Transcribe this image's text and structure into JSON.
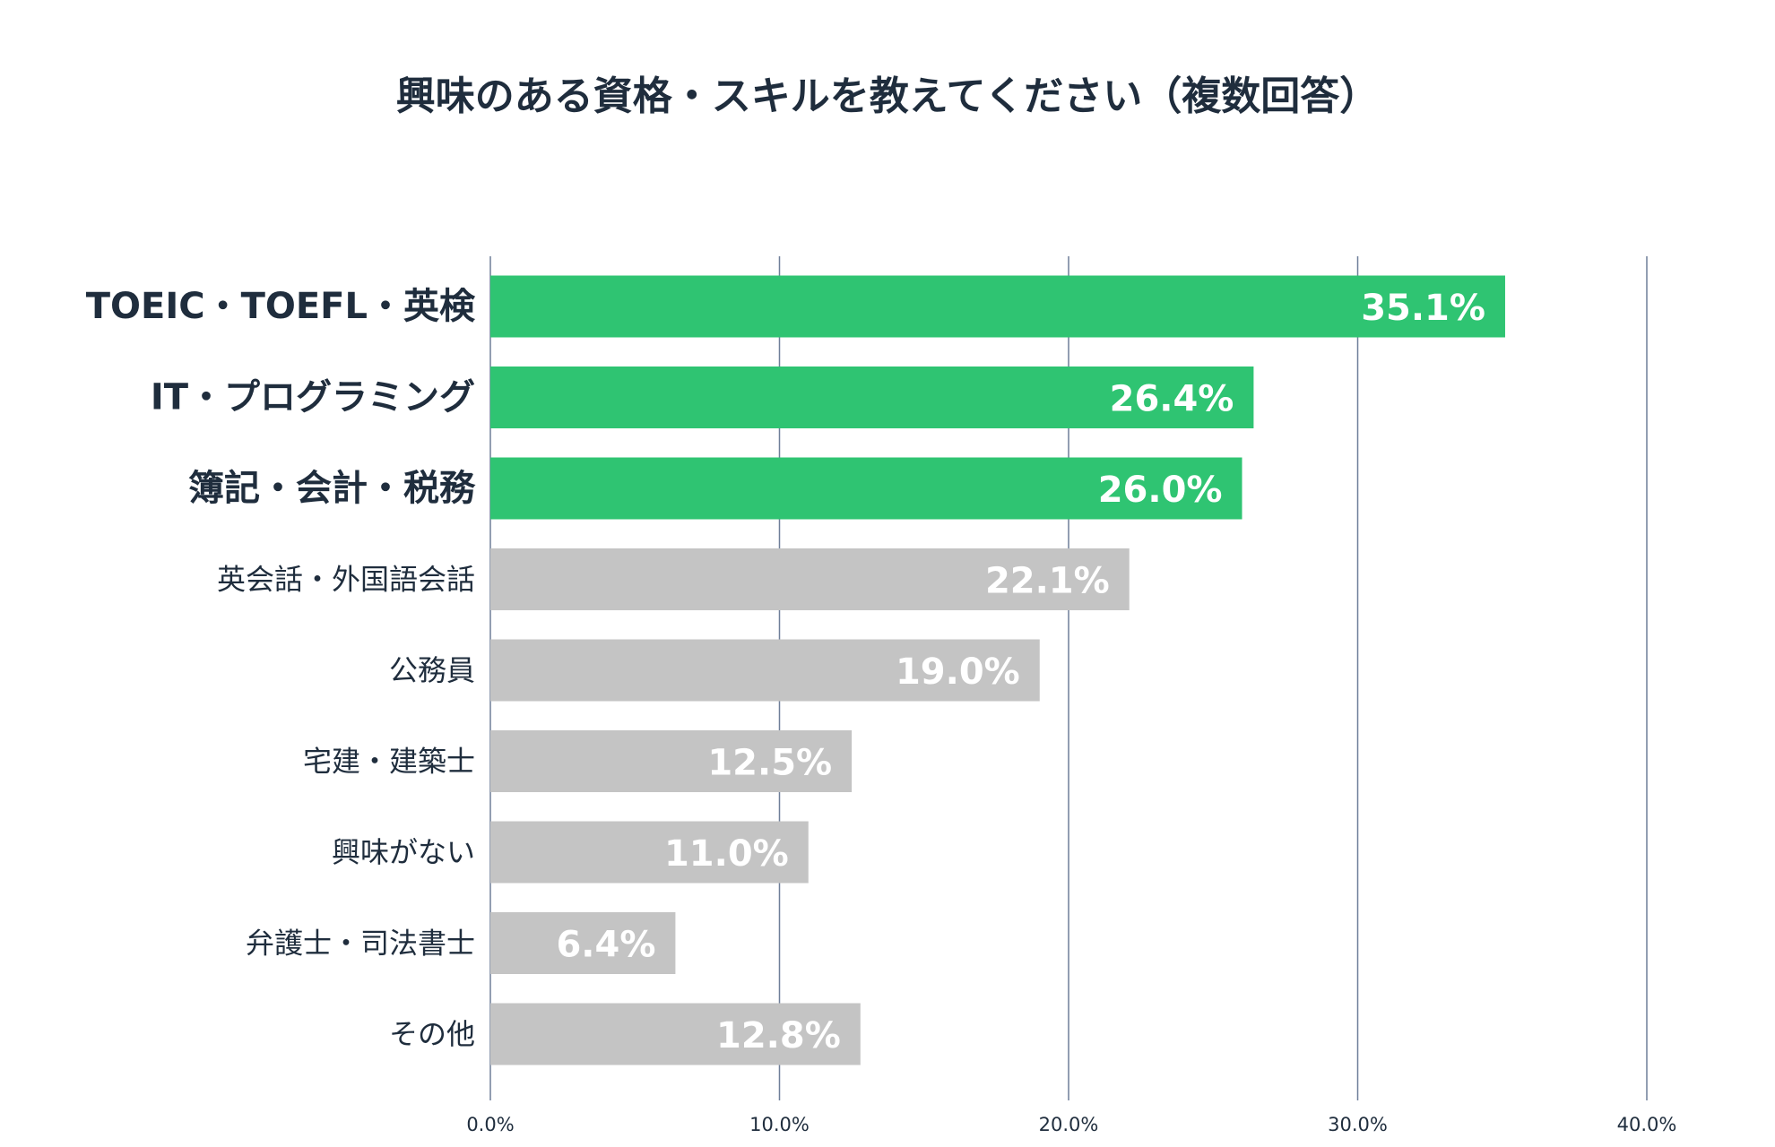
{
  "chart_data": {
    "type": "bar",
    "orientation": "horizontal",
    "title": "興味のある資格・スキルを教えてください（複数回答）",
    "categories": [
      "TOEIC・TOEFL・英検",
      "IT・プログラミング",
      "簿記・会計・税務",
      "英会話・外国語会話",
      "公務員",
      "宅建・建築士",
      "興味がない",
      "弁護士・司法書士",
      "その他"
    ],
    "values": [
      35.1,
      26.4,
      26.0,
      22.1,
      19.0,
      12.5,
      11.0,
      6.4,
      12.8
    ],
    "value_labels": [
      "35.1%",
      "26.4%",
      "26.0%",
      "22.1%",
      "19.0%",
      "12.5%",
      "11.0%",
      "6.4%",
      "12.8%"
    ],
    "highlighted": [
      true,
      true,
      true,
      false,
      false,
      false,
      false,
      false,
      false
    ],
    "xlim": [
      0,
      40
    ],
    "xticks": [
      0,
      10,
      20,
      30,
      40
    ],
    "xtick_labels": [
      "0.0%",
      "10.0%",
      "20.0%",
      "30.0%",
      "40.0%"
    ],
    "xlabel": "",
    "ylabel": "",
    "grid": "vertical",
    "colors": {
      "highlight": "#2fc472",
      "normal": "#c4c4c4",
      "grid": "#6f7f99",
      "text": "#1f2d3d",
      "value_text": "#ffffff"
    }
  }
}
